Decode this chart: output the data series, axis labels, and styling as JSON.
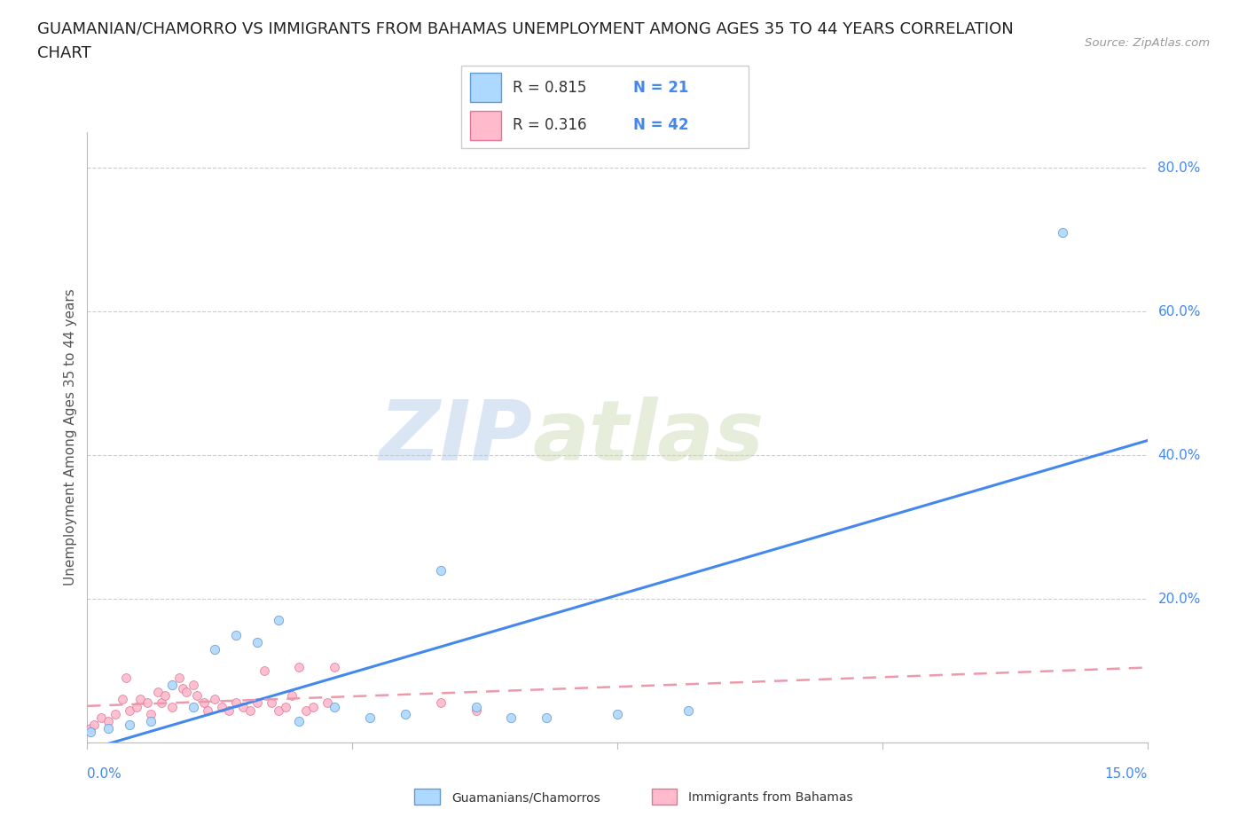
{
  "title_line1": "GUAMANIAN/CHAMORRO VS IMMIGRANTS FROM BAHAMAS UNEMPLOYMENT AMONG AGES 35 TO 44 YEARS CORRELATION",
  "title_line2": "CHART",
  "source_text": "Source: ZipAtlas.com",
  "ylabel": "Unemployment Among Ages 35 to 44 years",
  "watermark_zip": "ZIP",
  "watermark_atlas": "atlas",
  "blue_R": 0.815,
  "blue_N": 21,
  "pink_R": 0.316,
  "pink_N": 42,
  "blue_color": "#add8ff",
  "blue_edge_color": "#6699cc",
  "blue_line_color": "#4488ee",
  "pink_color": "#ffbbcc",
  "pink_edge_color": "#dd7799",
  "pink_line_color": "#ee99aa",
  "blue_scatter_x": [
    0.05,
    0.3,
    0.6,
    0.9,
    1.2,
    1.5,
    1.8,
    2.1,
    2.4,
    2.7,
    3.0,
    3.5,
    4.0,
    4.5,
    5.0,
    5.5,
    6.0,
    6.5,
    7.5,
    8.5,
    13.8
  ],
  "blue_scatter_y": [
    1.5,
    2.0,
    2.5,
    3.0,
    8.0,
    5.0,
    13.0,
    15.0,
    14.0,
    17.0,
    3.0,
    5.0,
    3.5,
    4.0,
    24.0,
    5.0,
    3.5,
    3.5,
    4.0,
    4.5,
    71.0
  ],
  "pink_scatter_x": [
    0.05,
    0.1,
    0.2,
    0.3,
    0.4,
    0.5,
    0.55,
    0.6,
    0.7,
    0.75,
    0.85,
    0.9,
    1.0,
    1.05,
    1.1,
    1.2,
    1.3,
    1.35,
    1.4,
    1.5,
    1.55,
    1.65,
    1.7,
    1.8,
    1.9,
    2.0,
    2.1,
    2.2,
    2.3,
    2.4,
    2.5,
    2.6,
    2.7,
    2.8,
    2.9,
    3.0,
    3.1,
    3.2,
    3.4,
    3.5,
    5.0,
    5.5
  ],
  "pink_scatter_y": [
    2.0,
    2.5,
    3.5,
    3.0,
    4.0,
    6.0,
    9.0,
    4.5,
    5.0,
    6.0,
    5.5,
    4.0,
    7.0,
    5.5,
    6.5,
    5.0,
    9.0,
    7.5,
    7.0,
    8.0,
    6.5,
    5.5,
    4.5,
    6.0,
    5.0,
    4.5,
    5.5,
    5.0,
    4.5,
    5.5,
    10.0,
    5.5,
    4.5,
    5.0,
    6.5,
    10.5,
    4.5,
    5.0,
    5.5,
    10.5,
    5.5,
    4.5
  ],
  "xlim": [
    0.0,
    15.0
  ],
  "ylim": [
    0.0,
    85.0
  ],
  "yticks": [
    0.0,
    20.0,
    40.0,
    60.0,
    80.0
  ],
  "ytick_labels": [
    "",
    "20.0%",
    "40.0%",
    "60.0%",
    "80.0%"
  ],
  "xtick_left_label": "0.0%",
  "xtick_right_label": "15.0%",
  "grid_color": "#cccccc",
  "bg_color": "#ffffff",
  "title_color": "#222222",
  "source_color": "#999999",
  "axis_label_color": "#4488ee",
  "ylabel_color": "#555555",
  "title_fontsize": 13,
  "axis_label_fontsize": 11,
  "ylabel_fontsize": 11,
  "legend_label_color": "#333333",
  "bottom_legend_items": [
    "Guamanians/Chamorros",
    "Immigrants from Bahamas"
  ]
}
